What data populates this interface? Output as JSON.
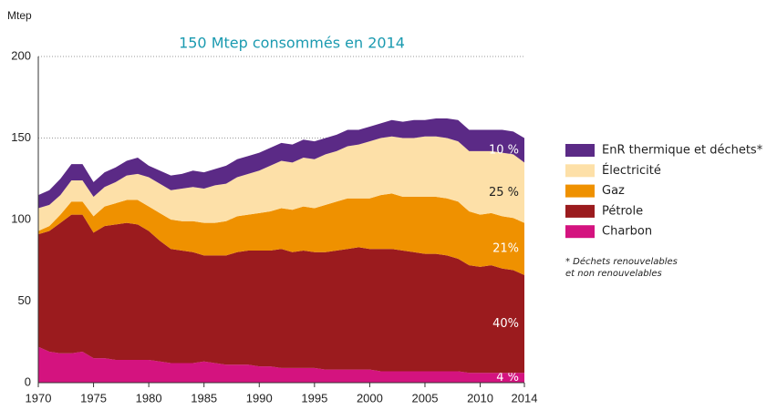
{
  "chart_data": {
    "type": "stacked_area",
    "title": "150 Mtep consommés en 2014",
    "y_label": "Mtep",
    "x": [
      1970,
      1971,
      1972,
      1973,
      1974,
      1975,
      1976,
      1977,
      1978,
      1979,
      1980,
      1981,
      1982,
      1983,
      1984,
      1985,
      1986,
      1987,
      1988,
      1989,
      1990,
      1991,
      1992,
      1993,
      1994,
      1995,
      1996,
      1997,
      1998,
      1999,
      2000,
      2001,
      2002,
      2003,
      2004,
      2005,
      2006,
      2007,
      2008,
      2009,
      2010,
      2011,
      2012,
      2013,
      2014
    ],
    "series": [
      {
        "name": "Charbon",
        "color": "#d4137f",
        "label": "4 %",
        "values": [
          22,
          19,
          18,
          18,
          19,
          15,
          15,
          14,
          14,
          14,
          14,
          13,
          12,
          12,
          12,
          13,
          12,
          11,
          11,
          11,
          10,
          10,
          9,
          9,
          9,
          9,
          8,
          8,
          8,
          8,
          8,
          7,
          7,
          7,
          7,
          7,
          7,
          7,
          7,
          6,
          6,
          6,
          6,
          6,
          6
        ]
      },
      {
        "name": "Pétrole",
        "color": "#9b1b1e",
        "label": "40%",
        "values": [
          69,
          74,
          80,
          85,
          84,
          77,
          81,
          83,
          84,
          83,
          79,
          74,
          70,
          69,
          68,
          65,
          66,
          67,
          69,
          70,
          71,
          71,
          73,
          71,
          72,
          71,
          72,
          73,
          74,
          75,
          74,
          75,
          75,
          74,
          73,
          72,
          72,
          71,
          69,
          66,
          65,
          66,
          64,
          63,
          60
        ]
      },
      {
        "name": "Gaz",
        "color": "#ef9100",
        "label": "21%",
        "values": [
          2,
          3,
          5,
          8,
          8,
          10,
          12,
          13,
          14,
          15,
          15,
          17,
          18,
          18,
          19,
          20,
          20,
          21,
          22,
          22,
          23,
          24,
          25,
          26,
          27,
          27,
          29,
          30,
          31,
          30,
          31,
          33,
          34,
          33,
          34,
          35,
          35,
          35,
          35,
          33,
          32,
          32,
          32,
          32,
          32
        ]
      },
      {
        "name": "Électricité",
        "color": "#fde0a8",
        "label": "25 %",
        "values": [
          14,
          13,
          12,
          13,
          13,
          12,
          12,
          13,
          15,
          16,
          18,
          18,
          18,
          20,
          21,
          21,
          23,
          23,
          24,
          25,
          26,
          28,
          29,
          29,
          30,
          30,
          31,
          31,
          32,
          33,
          35,
          35,
          35,
          36,
          36,
          37,
          37,
          37,
          37,
          37,
          39,
          38,
          39,
          39,
          37
        ]
      },
      {
        "name": "EnR thermique et déchets*",
        "color": "#5b2a86",
        "label": "10 %",
        "values": [
          8,
          9,
          10,
          10,
          10,
          9,
          9,
          9,
          9,
          10,
          7,
          8,
          9,
          9,
          10,
          10,
          10,
          11,
          11,
          11,
          11,
          11,
          11,
          11,
          11,
          11,
          10,
          10,
          10,
          9,
          9,
          9,
          10,
          10,
          11,
          10,
          11,
          12,
          13,
          13,
          13,
          13,
          14,
          14,
          15
        ]
      }
    ],
    "xlim": [
      1970,
      2014
    ],
    "xticks": [
      1970,
      1975,
      1980,
      1985,
      1990,
      1995,
      2000,
      2005,
      2010,
      2014
    ],
    "ylim": [
      0,
      200
    ],
    "yticks": [
      0,
      50,
      100,
      150,
      200
    ],
    "grid": true,
    "footnote": [
      "* Déchets renouvelables",
      "et non renouvelables"
    ]
  }
}
